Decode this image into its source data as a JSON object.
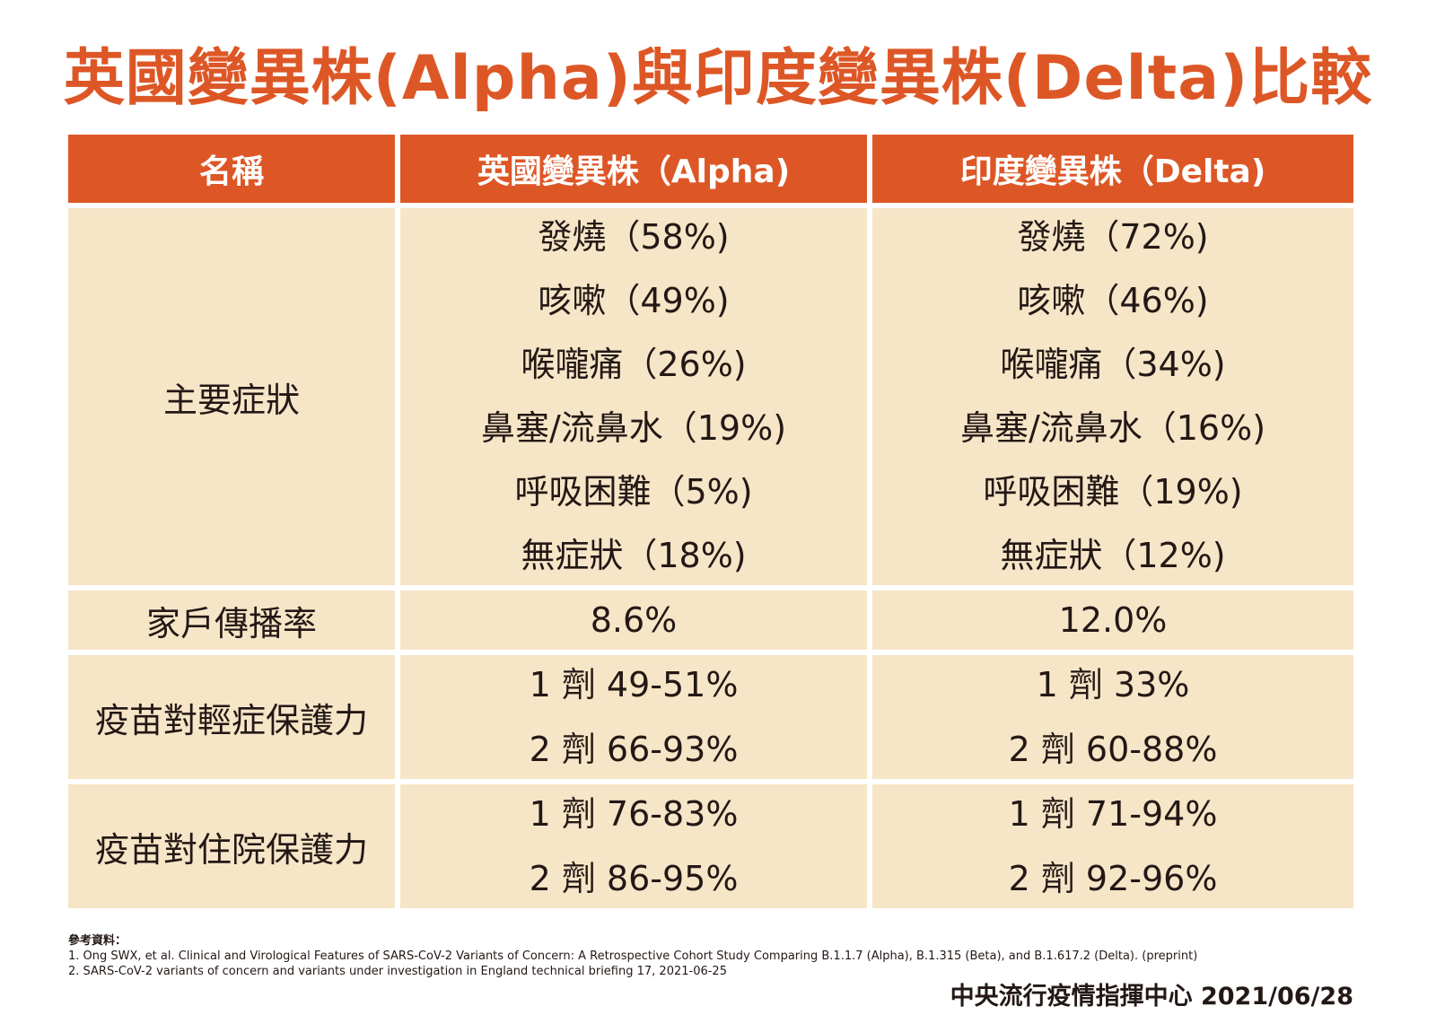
{
  "title": "英國變異株(Alpha)與印度變異株(Delta)比較",
  "table": {
    "headers": [
      "名稱",
      "英國變異株（Alpha)",
      "印度變異株（Delta)"
    ],
    "rows": [
      {
        "label": "主要症狀",
        "alpha": [
          "發燒（58%)",
          "咳嗽（49%)",
          "喉嚨痛（26%)",
          "鼻塞/流鼻水（19%)",
          "呼吸困難（5%)",
          "無症狀（18%)"
        ],
        "delta": [
          "發燒（72%)",
          "咳嗽（46%)",
          "喉嚨痛（34%)",
          "鼻塞/流鼻水（16%)",
          "呼吸困難（19%)",
          "無症狀（12%)"
        ]
      },
      {
        "label": "家戶傳播率",
        "alpha": [
          "8.6%"
        ],
        "delta": [
          "12.0%"
        ]
      },
      {
        "label": "疫苗對輕症保護力",
        "alpha": [
          "1 劑 49-51%",
          "2 劑 66-93%"
        ],
        "delta": [
          "1 劑 33%",
          "2 劑 60-88%"
        ]
      },
      {
        "label": "疫苗對住院保護力",
        "alpha": [
          "1 劑 76-83%",
          "2 劑 86-95%"
        ],
        "delta": [
          "1 劑 71-94%",
          "2 劑 92-96%"
        ]
      }
    ]
  },
  "references": {
    "title": "參考資料：",
    "items": [
      "1. Ong SWX, et al. Clinical and Virological Features of SARS-CoV-2 Variants of Concern: A Retrospective Cohort Study Comparing B.1.1.7 (Alpha), B.1.315 (Beta), and B.1.617.2 (Delta). (preprint)",
      "2. SARS-CoV-2 variants of concern and variants under investigation in England technical briefing 17, 2021-06-25"
    ]
  },
  "footer": "中央流行疫情指揮中心 2021/06/28",
  "colors": {
    "accent": "#dd5726",
    "cell_bg": "#f6e5c7",
    "text": "#231815"
  }
}
